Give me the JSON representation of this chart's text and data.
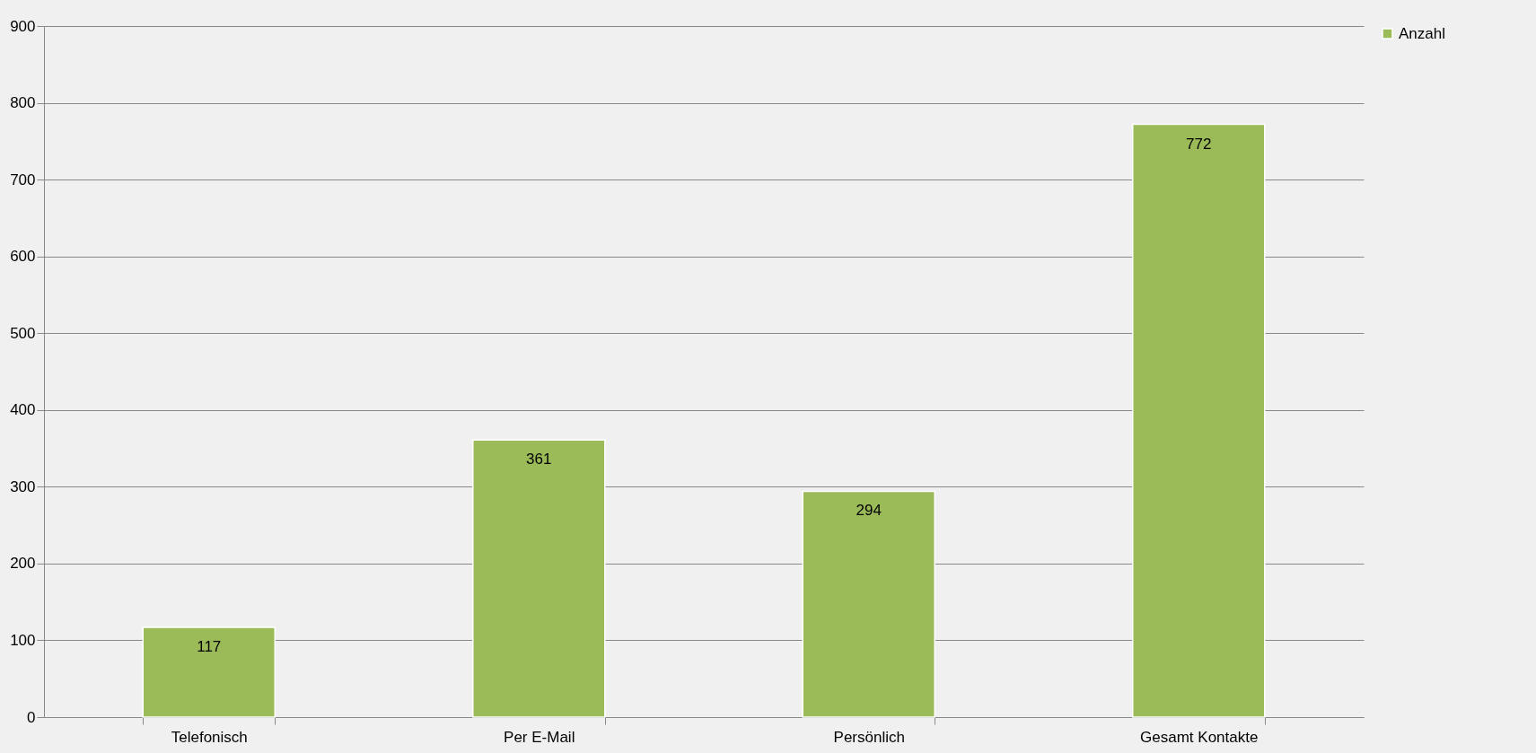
{
  "chart_data": {
    "type": "bar",
    "categories": [
      "Telefonisch",
      "Per E-Mail",
      "Persönlich",
      "Gesamt Kontakte"
    ],
    "series": [
      {
        "name": "Anzahl",
        "color": "#9bbb59",
        "values": [
          117,
          361,
          294,
          772
        ]
      }
    ],
    "ylim": [
      0,
      900
    ],
    "yticks": [
      0,
      100,
      200,
      300,
      400,
      500,
      600,
      700,
      800,
      900
    ],
    "grid": "y",
    "legend": "right",
    "data_labels": true
  }
}
